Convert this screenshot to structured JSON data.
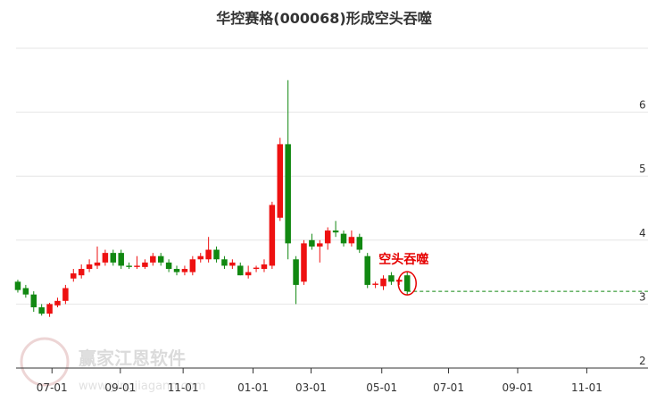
{
  "chart_data": {
    "type": "candlestick",
    "title": "华控赛格(000068)形成空头吞噬",
    "annotation": "空头吞噬",
    "watermark": "赢家江恩软件",
    "watermark_url": "www.yingjiagann.com",
    "up_color": "#ee1111",
    "down_color": "#118811",
    "annotation_color": "#e60000",
    "x": [
      0,
      1,
      2,
      3,
      4,
      5,
      6,
      7,
      8,
      9,
      10,
      11,
      12,
      13,
      14,
      15,
      16,
      17,
      18,
      19,
      20,
      21,
      22,
      23,
      24,
      25,
      26,
      27,
      28,
      29,
      30,
      31,
      32,
      33,
      34,
      35,
      36,
      37,
      38,
      39,
      40,
      41,
      42,
      43,
      44,
      45,
      46,
      47,
      48,
      49
    ],
    "open": [
      3.35,
      3.25,
      3.15,
      2.95,
      2.85,
      2.98,
      3.05,
      3.4,
      3.45,
      3.55,
      3.6,
      3.65,
      3.8,
      3.8,
      3.6,
      3.58,
      3.58,
      3.65,
      3.75,
      3.65,
      3.55,
      3.5,
      3.5,
      3.7,
      3.7,
      3.85,
      3.7,
      3.6,
      3.6,
      3.45,
      3.55,
      3.55,
      3.6,
      4.35,
      5.5,
      3.7,
      3.35,
      4.0,
      3.9,
      3.95,
      4.15,
      4.1,
      3.95,
      4.05,
      3.75,
      3.3,
      3.28,
      3.45,
      3.35,
      3.45
    ],
    "high": [
      3.38,
      3.3,
      3.2,
      3.0,
      3.02,
      3.1,
      3.3,
      3.55,
      3.62,
      3.7,
      3.9,
      3.85,
      3.85,
      3.85,
      3.65,
      3.75,
      3.7,
      3.8,
      3.8,
      3.7,
      3.6,
      3.6,
      3.75,
      3.8,
      4.05,
      3.9,
      3.75,
      3.7,
      3.65,
      3.6,
      3.6,
      3.7,
      4.6,
      5.6,
      6.5,
      3.75,
      4.0,
      4.1,
      4.0,
      4.2,
      4.3,
      4.15,
      4.15,
      4.1,
      3.8,
      3.35,
      3.45,
      3.5,
      3.42,
      3.5
    ],
    "low": [
      3.18,
      3.1,
      2.88,
      2.82,
      2.8,
      2.95,
      3.0,
      3.35,
      3.4,
      3.5,
      3.55,
      3.6,
      3.6,
      3.55,
      3.55,
      3.55,
      3.55,
      3.6,
      3.6,
      3.5,
      3.45,
      3.45,
      3.45,
      3.65,
      3.65,
      3.65,
      3.55,
      3.55,
      3.45,
      3.4,
      3.5,
      3.5,
      3.55,
      4.3,
      3.7,
      3.0,
      3.3,
      3.85,
      3.65,
      3.85,
      4.05,
      3.9,
      3.9,
      3.8,
      3.25,
      3.25,
      3.22,
      3.3,
      3.3,
      3.15
    ],
    "close": [
      3.22,
      3.15,
      2.95,
      2.85,
      3.0,
      3.05,
      3.25,
      3.48,
      3.55,
      3.62,
      3.65,
      3.8,
      3.65,
      3.6,
      3.58,
      3.6,
      3.65,
      3.75,
      3.65,
      3.55,
      3.5,
      3.55,
      3.7,
      3.75,
      3.85,
      3.7,
      3.6,
      3.65,
      3.45,
      3.5,
      3.57,
      3.62,
      4.55,
      5.5,
      3.95,
      3.3,
      3.95,
      3.9,
      3.95,
      4.15,
      4.12,
      3.95,
      4.05,
      3.85,
      3.3,
      3.32,
      3.4,
      3.35,
      3.38,
      3.2
    ],
    "xlim": [
      -0.22,
      79.3
    ],
    "xticks": [
      {
        "value": 4.3,
        "label": "07-01"
      },
      {
        "value": 12.9,
        "label": "09-01"
      },
      {
        "value": 20.8,
        "label": "11-01"
      },
      {
        "value": 29.6,
        "label": "01-01"
      },
      {
        "value": 36.9,
        "label": "03-01"
      },
      {
        "value": 45.8,
        "label": "05-01"
      },
      {
        "value": 54.2,
        "label": "07-01"
      },
      {
        "value": 62.9,
        "label": "09-01"
      },
      {
        "value": 71.6,
        "label": "11-01"
      }
    ],
    "ylim": [
      2,
      7
    ],
    "yticks": [
      2,
      3,
      4,
      5,
      6
    ],
    "grid": true
  }
}
